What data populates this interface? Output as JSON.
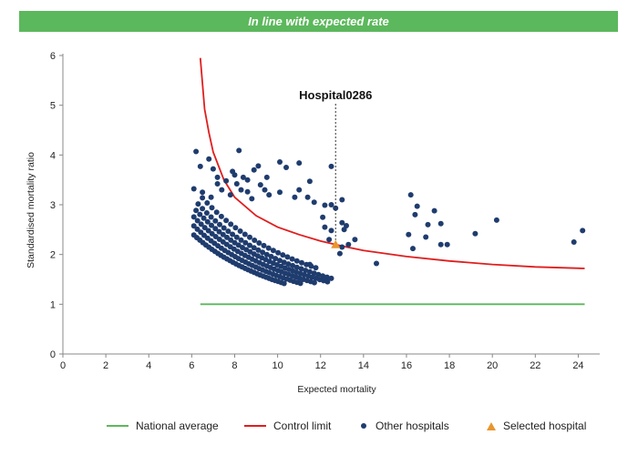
{
  "banner": {
    "text": "In line with expected rate",
    "color": "#5cb85c"
  },
  "colors": {
    "national_average": "#5cb85c",
    "control_limit": "#e01e1e",
    "other_hospitals": "#1f3c6e",
    "selected_hospital": "#e8962e"
  },
  "legend": {
    "national_average": "National average",
    "control_limit": "Control limit",
    "other_hospitals": "Other hospitals",
    "selected_hospital": "Selected hospital"
  },
  "chart_data": {
    "type": "scatter",
    "title": "",
    "xlabel": "Expected mortality",
    "ylabel": "Standardised mortality ratio",
    "xlim": [
      0,
      25
    ],
    "ylim": [
      0,
      6
    ],
    "xticks": [
      0,
      2,
      4,
      6,
      8,
      10,
      12,
      14,
      16,
      18,
      20,
      22,
      24
    ],
    "yticks": [
      0,
      1,
      2,
      3,
      4,
      5,
      6
    ],
    "grid": false,
    "legend_position": "bottom",
    "national_average": {
      "value": 1,
      "x_range": [
        6.4,
        24.3
      ]
    },
    "control_limit": {
      "x": [
        6.4,
        6.6,
        6.8,
        7.0,
        7.5,
        8.0,
        9.0,
        10.0,
        11.0,
        12.0,
        13.0,
        14.0,
        16.0,
        18.0,
        20.0,
        22.0,
        24.3
      ],
      "y": [
        5.95,
        4.92,
        4.45,
        4.06,
        3.5,
        3.15,
        2.78,
        2.55,
        2.4,
        2.27,
        2.17,
        2.08,
        1.96,
        1.87,
        1.8,
        1.75,
        1.72
      ]
    },
    "selected_hospital": {
      "label": "Hospital0286",
      "x": 12.7,
      "y": 2.2
    },
    "other_hospitals": [
      [
        6.2,
        4.07
      ],
      [
        6.4,
        3.77
      ],
      [
        6.8,
        3.92
      ],
      [
        7.0,
        3.72
      ],
      [
        7.2,
        3.55
      ],
      [
        7.6,
        3.48
      ],
      [
        7.9,
        3.67
      ],
      [
        8.0,
        3.6
      ],
      [
        8.2,
        4.09
      ],
      [
        8.4,
        3.55
      ],
      [
        8.6,
        3.5
      ],
      [
        8.9,
        3.7
      ],
      [
        9.1,
        3.78
      ],
      [
        9.5,
        3.55
      ],
      [
        10.1,
        3.86
      ],
      [
        10.4,
        3.75
      ],
      [
        11.0,
        3.84
      ],
      [
        11.5,
        3.47
      ],
      [
        12.5,
        3.77
      ],
      [
        6.1,
        3.32
      ],
      [
        6.5,
        3.25
      ],
      [
        6.9,
        3.15
      ],
      [
        7.2,
        3.42
      ],
      [
        7.4,
        3.3
      ],
      [
        7.8,
        3.2
      ],
      [
        8.1,
        3.42
      ],
      [
        8.3,
        3.3
      ],
      [
        8.6,
        3.26
      ],
      [
        8.8,
        3.12
      ],
      [
        9.2,
        3.4
      ],
      [
        9.4,
        3.3
      ],
      [
        9.6,
        3.2
      ],
      [
        10.1,
        3.25
      ],
      [
        10.8,
        3.15
      ],
      [
        11.0,
        3.3
      ],
      [
        11.4,
        3.15
      ],
      [
        11.7,
        3.05
      ],
      [
        12.2,
        2.99
      ],
      [
        12.5,
        3.0
      ],
      [
        13.0,
        3.1
      ],
      [
        12.1,
        2.75
      ],
      [
        12.7,
        2.93
      ],
      [
        12.2,
        2.55
      ],
      [
        12.5,
        2.48
      ],
      [
        13.0,
        2.64
      ],
      [
        13.1,
        2.5
      ],
      [
        13.2,
        2.58
      ],
      [
        12.4,
        2.3
      ],
      [
        13.0,
        2.15
      ],
      [
        13.3,
        2.2
      ],
      [
        13.6,
        2.3
      ],
      [
        12.9,
        2.02
      ],
      [
        11.5,
        1.8
      ],
      [
        14.6,
        1.82
      ],
      [
        16.1,
        2.4
      ],
      [
        16.2,
        3.2
      ],
      [
        16.4,
        2.8
      ],
      [
        16.5,
        2.97
      ],
      [
        16.3,
        2.12
      ],
      [
        16.9,
        2.35
      ],
      [
        17.0,
        2.6
      ],
      [
        17.3,
        2.88
      ],
      [
        17.6,
        2.62
      ],
      [
        17.6,
        2.2
      ],
      [
        17.9,
        2.2
      ],
      [
        19.2,
        2.42
      ],
      [
        20.2,
        2.69
      ],
      [
        23.8,
        2.25
      ],
      [
        24.2,
        2.48
      ]
    ]
  }
}
